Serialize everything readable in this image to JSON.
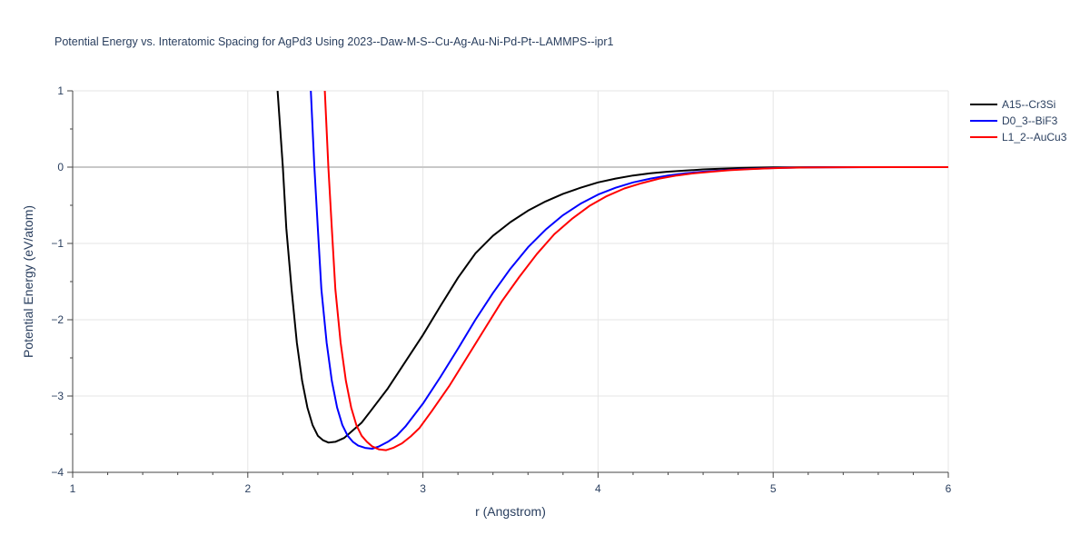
{
  "chart_data": {
    "type": "line",
    "title": "Potential Energy vs. Interatomic Spacing for AgPd3 Using 2023--Daw-M-S--Cu-Ag-Au-Ni-Pd-Pt--LAMMPS--ipr1",
    "xlabel": "r (Angstrom)",
    "ylabel": "Potential Energy (eV/atom)",
    "xlim": [
      1,
      6
    ],
    "ylim": [
      -4,
      1
    ],
    "x_ticks": [
      1,
      2,
      3,
      4,
      5,
      6
    ],
    "x_tick_labels": [
      "1",
      "2",
      "3",
      "4",
      "5",
      "6"
    ],
    "y_ticks": [
      -4,
      -3,
      -2,
      -1,
      0,
      1
    ],
    "y_tick_labels": [
      "−4",
      "−3",
      "−2",
      "−1",
      "0",
      "1"
    ],
    "grid": true,
    "legend_position": "top-right",
    "series": [
      {
        "name": "A15--Cr3Si",
        "color": "#000000",
        "x": [
          2.17,
          2.2,
          2.22,
          2.25,
          2.28,
          2.31,
          2.34,
          2.37,
          2.4,
          2.43,
          2.46,
          2.5,
          2.55,
          2.6,
          2.65,
          2.7,
          2.8,
          2.9,
          3.0,
          3.1,
          3.2,
          3.3,
          3.4,
          3.5,
          3.6,
          3.7,
          3.8,
          3.9,
          4.0,
          4.1,
          4.2,
          4.3,
          4.4,
          4.5,
          4.6,
          4.7,
          4.8,
          4.9,
          5.0,
          5.1,
          5.2,
          5.3,
          5.5,
          5.8,
          6.0
        ],
        "y": [
          1.0,
          0.0,
          -0.8,
          -1.6,
          -2.3,
          -2.8,
          -3.15,
          -3.38,
          -3.52,
          -3.58,
          -3.61,
          -3.6,
          -3.55,
          -3.45,
          -3.35,
          -3.2,
          -2.9,
          -2.55,
          -2.2,
          -1.82,
          -1.45,
          -1.13,
          -0.9,
          -0.72,
          -0.57,
          -0.45,
          -0.35,
          -0.27,
          -0.2,
          -0.15,
          -0.11,
          -0.08,
          -0.06,
          -0.045,
          -0.03,
          -0.02,
          -0.012,
          -0.007,
          -0.004,
          -0.002,
          -0.001,
          0.0,
          0.0,
          0.0,
          0.0
        ]
      },
      {
        "name": "D0_3--BiF3",
        "color": "#0000ff",
        "x": [
          2.36,
          2.38,
          2.4,
          2.42,
          2.45,
          2.48,
          2.51,
          2.54,
          2.57,
          2.6,
          2.63,
          2.67,
          2.71,
          2.75,
          2.8,
          2.85,
          2.9,
          3.0,
          3.1,
          3.2,
          3.3,
          3.4,
          3.5,
          3.6,
          3.7,
          3.8,
          3.9,
          4.0,
          4.1,
          4.2,
          4.3,
          4.4,
          4.5,
          4.6,
          4.7,
          4.8,
          4.9,
          5.0,
          5.1,
          5.2,
          5.4,
          5.7,
          6.0
        ],
        "y": [
          1.0,
          0.0,
          -0.8,
          -1.6,
          -2.3,
          -2.8,
          -3.15,
          -3.38,
          -3.52,
          -3.6,
          -3.65,
          -3.68,
          -3.69,
          -3.66,
          -3.6,
          -3.52,
          -3.4,
          -3.1,
          -2.75,
          -2.38,
          -2.0,
          -1.65,
          -1.33,
          -1.05,
          -0.82,
          -0.63,
          -0.48,
          -0.36,
          -0.27,
          -0.2,
          -0.15,
          -0.11,
          -0.08,
          -0.06,
          -0.045,
          -0.03,
          -0.02,
          -0.012,
          -0.007,
          -0.004,
          -0.001,
          0.0,
          0.0
        ]
      },
      {
        "name": "L1_2--AuCu3",
        "color": "#ff0000",
        "x": [
          2.44,
          2.46,
          2.48,
          2.5,
          2.53,
          2.56,
          2.59,
          2.62,
          2.65,
          2.68,
          2.71,
          2.75,
          2.79,
          2.83,
          2.88,
          2.93,
          2.98,
          3.05,
          3.15,
          3.25,
          3.35,
          3.45,
          3.55,
          3.65,
          3.75,
          3.85,
          3.95,
          4.05,
          4.15,
          4.25,
          4.35,
          4.45,
          4.55,
          4.65,
          4.75,
          4.85,
          4.95,
          5.05,
          5.15,
          5.3,
          5.5,
          5.8,
          6.0
        ],
        "y": [
          1.0,
          0.0,
          -0.8,
          -1.6,
          -2.3,
          -2.8,
          -3.15,
          -3.38,
          -3.52,
          -3.6,
          -3.66,
          -3.7,
          -3.71,
          -3.68,
          -3.62,
          -3.53,
          -3.42,
          -3.2,
          -2.87,
          -2.5,
          -2.13,
          -1.76,
          -1.44,
          -1.14,
          -0.88,
          -0.68,
          -0.51,
          -0.38,
          -0.28,
          -0.21,
          -0.15,
          -0.11,
          -0.08,
          -0.06,
          -0.04,
          -0.028,
          -0.018,
          -0.011,
          -0.006,
          -0.002,
          0.0,
          0.0,
          0.0
        ]
      }
    ]
  }
}
